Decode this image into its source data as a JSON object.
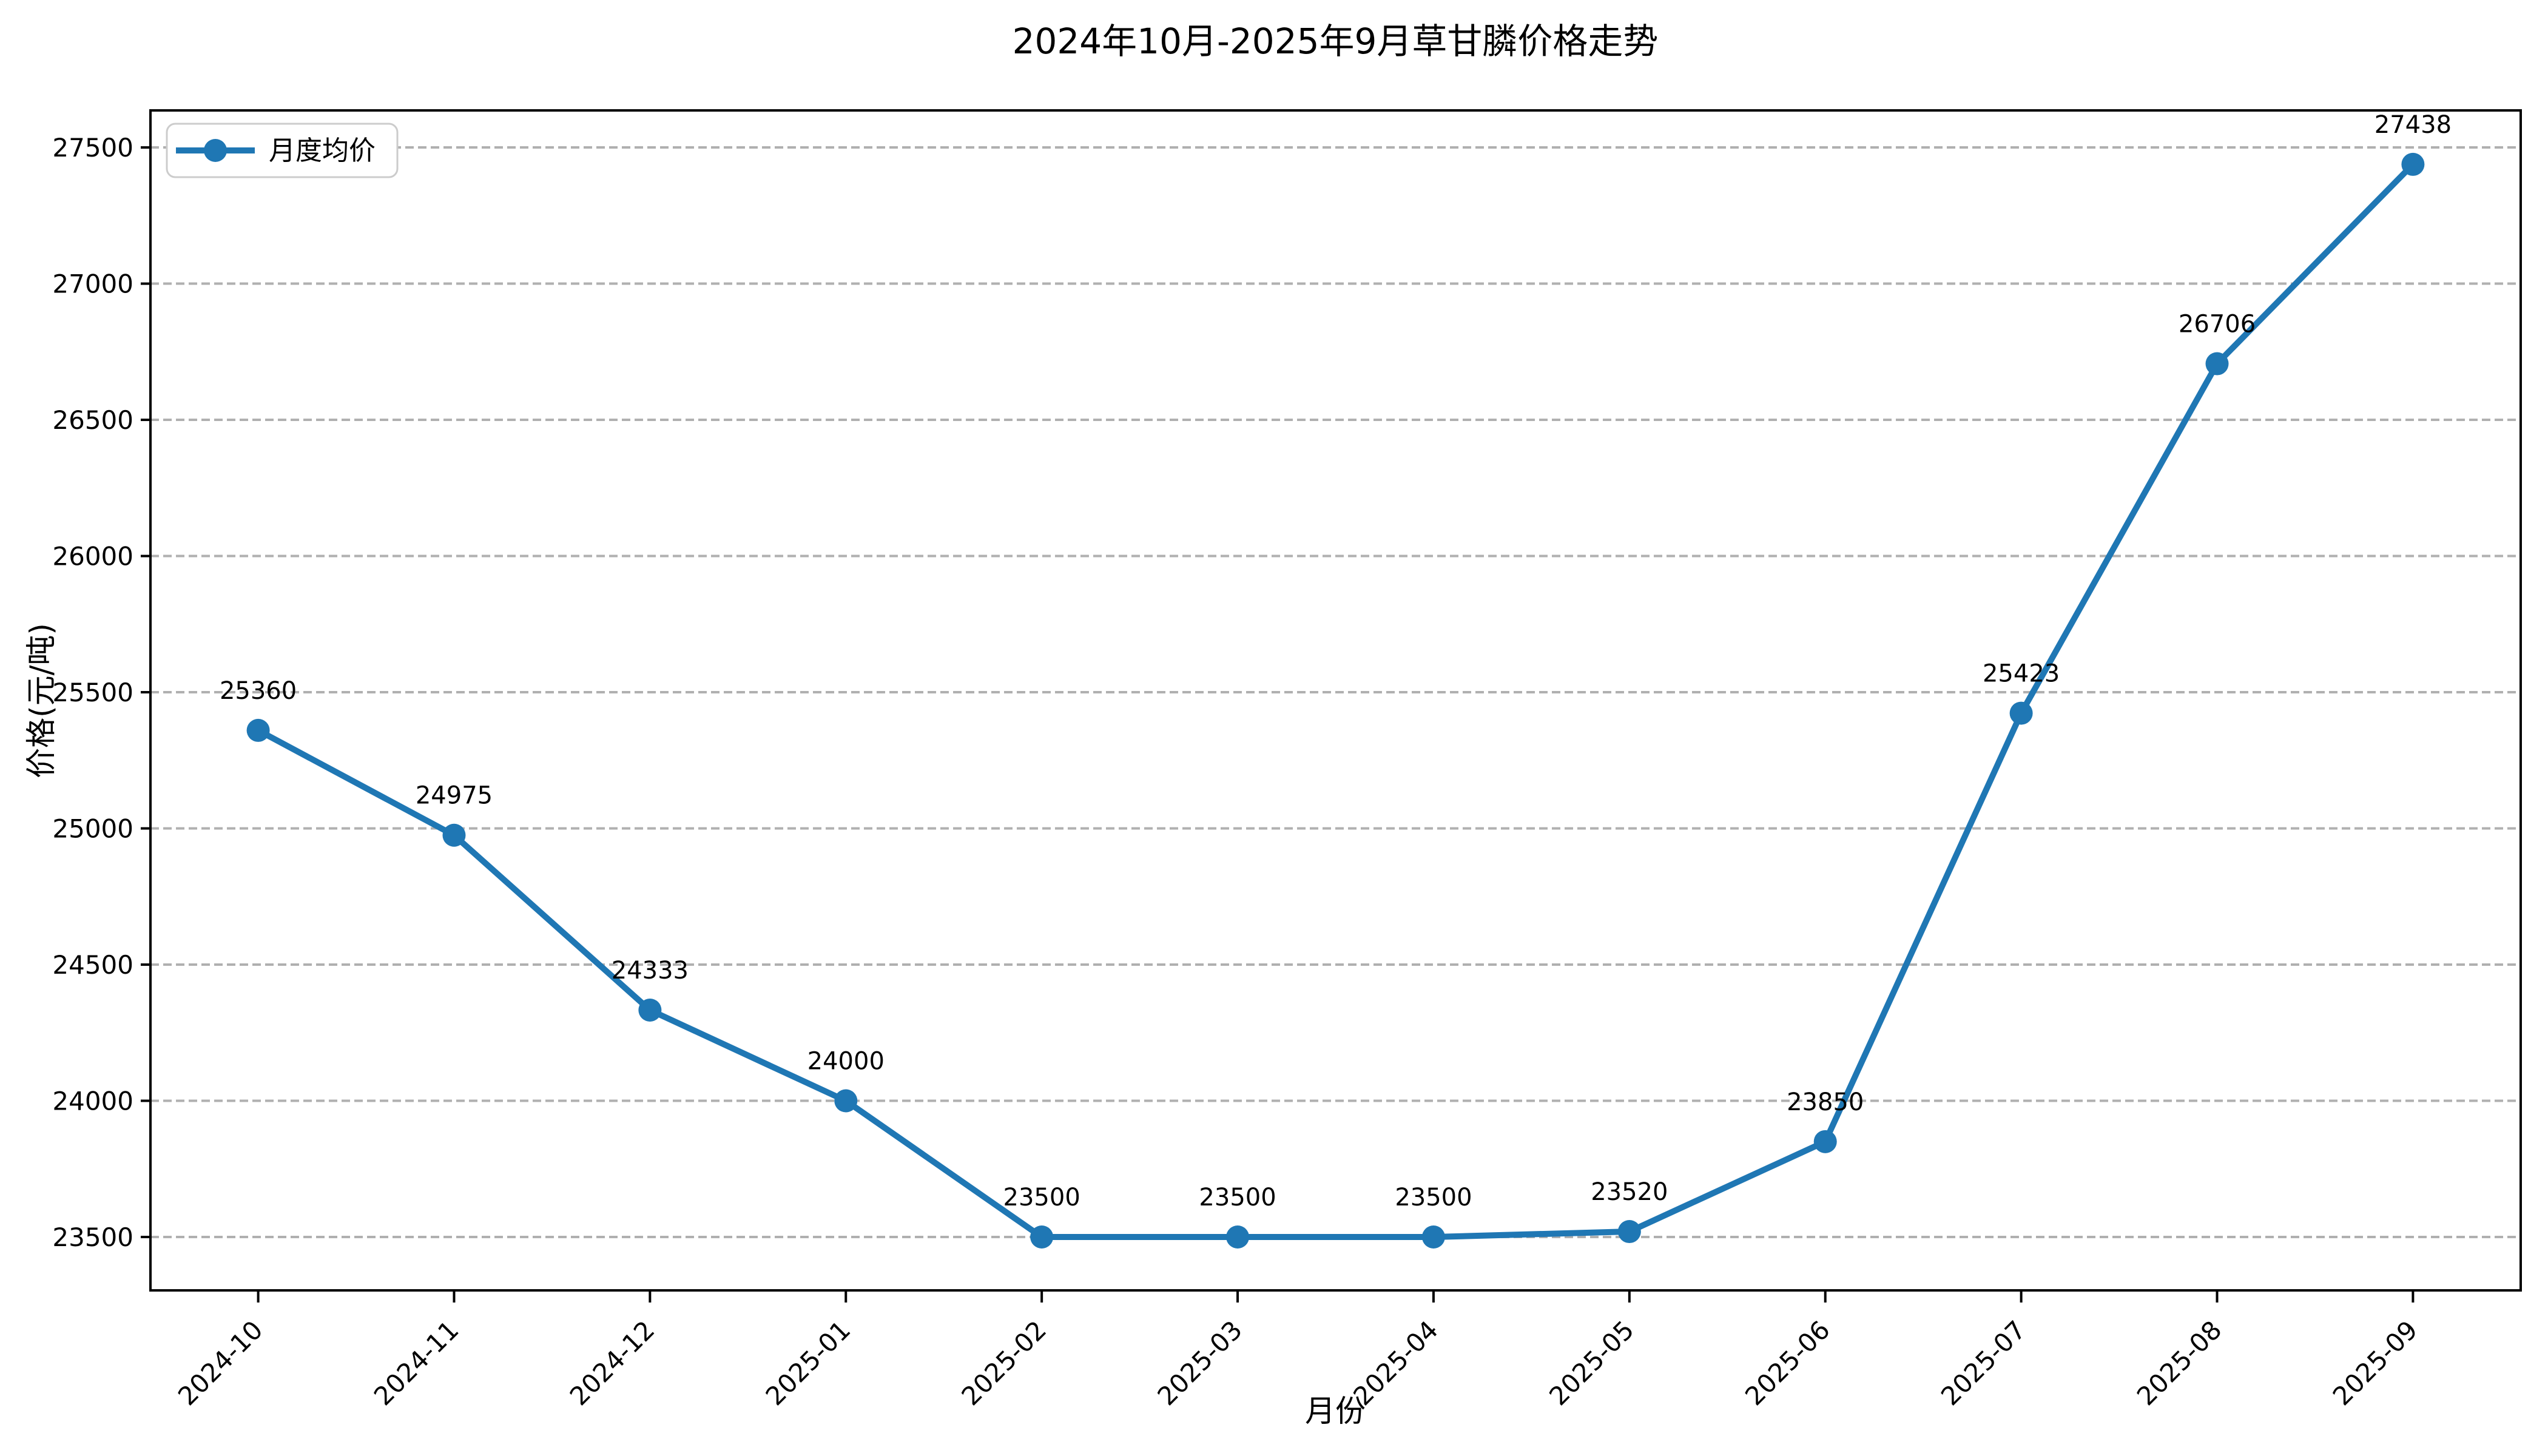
{
  "figure": {
    "background": "#ffffff"
  },
  "chart_data": {
    "type": "line",
    "title": "2024年10月-2025年9月草甘膦价格走势",
    "xlabel": "月份",
    "ylabel": "价格(元/吨)",
    "categories": [
      "2024-10",
      "2024-11",
      "2024-12",
      "2025-01",
      "2025-02",
      "2025-03",
      "2025-04",
      "2025-05",
      "2025-06",
      "2025-07",
      "2025-08",
      "2025-09"
    ],
    "series": [
      {
        "name": "月度均价",
        "color": "#1f77b4",
        "values": [
          25360,
          24975,
          24333,
          24000,
          23500,
          23500,
          23500,
          23520,
          23850,
          25423,
          26706,
          27438
        ],
        "marker": "circle",
        "show_point_labels": true
      }
    ],
    "yticks": [
      23500,
      24000,
      24500,
      25000,
      25500,
      26000,
      26500,
      27000,
      27500
    ],
    "ylim": [
      23304,
      27636
    ],
    "grid": "horizontal-dashed",
    "grid_color": "#b0b0b0",
    "axis_color": "#000000",
    "legend_position": "upper-left",
    "legend_border_color": "#cccccc"
  }
}
